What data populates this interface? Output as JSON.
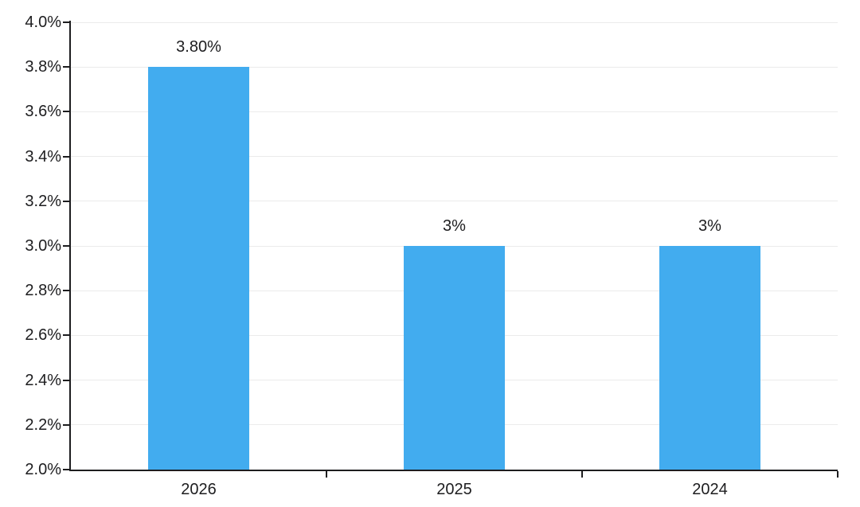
{
  "chart_data": {
    "type": "bar",
    "title": "",
    "xlabel": "",
    "ylabel": "",
    "categories": [
      "2026",
      "2025",
      "2024"
    ],
    "values": [
      3.8,
      3.0,
      3.0
    ],
    "bar_labels": [
      "3.80%",
      "3%",
      "3%"
    ],
    "ylim": [
      2.0,
      4.0
    ],
    "ytick_step": 0.2,
    "yticks": [
      4.0,
      3.8,
      3.6,
      3.4,
      3.2,
      3.0,
      2.8,
      2.6,
      2.4,
      2.2,
      2.0
    ],
    "ytick_labels": [
      "4.0%",
      "3.8%",
      "3.6%",
      "3.4%",
      "3.2%",
      "3.0%",
      "2.8%",
      "2.6%",
      "2.4%",
      "2.2%",
      "2.0%"
    ],
    "grid": true,
    "legend": false,
    "colors": {
      "bar": "#42ACEF",
      "axis": "#1d1d1f",
      "grid": "#ebebeb",
      "text": "#1d1d1f",
      "background": "#ffffff"
    }
  }
}
